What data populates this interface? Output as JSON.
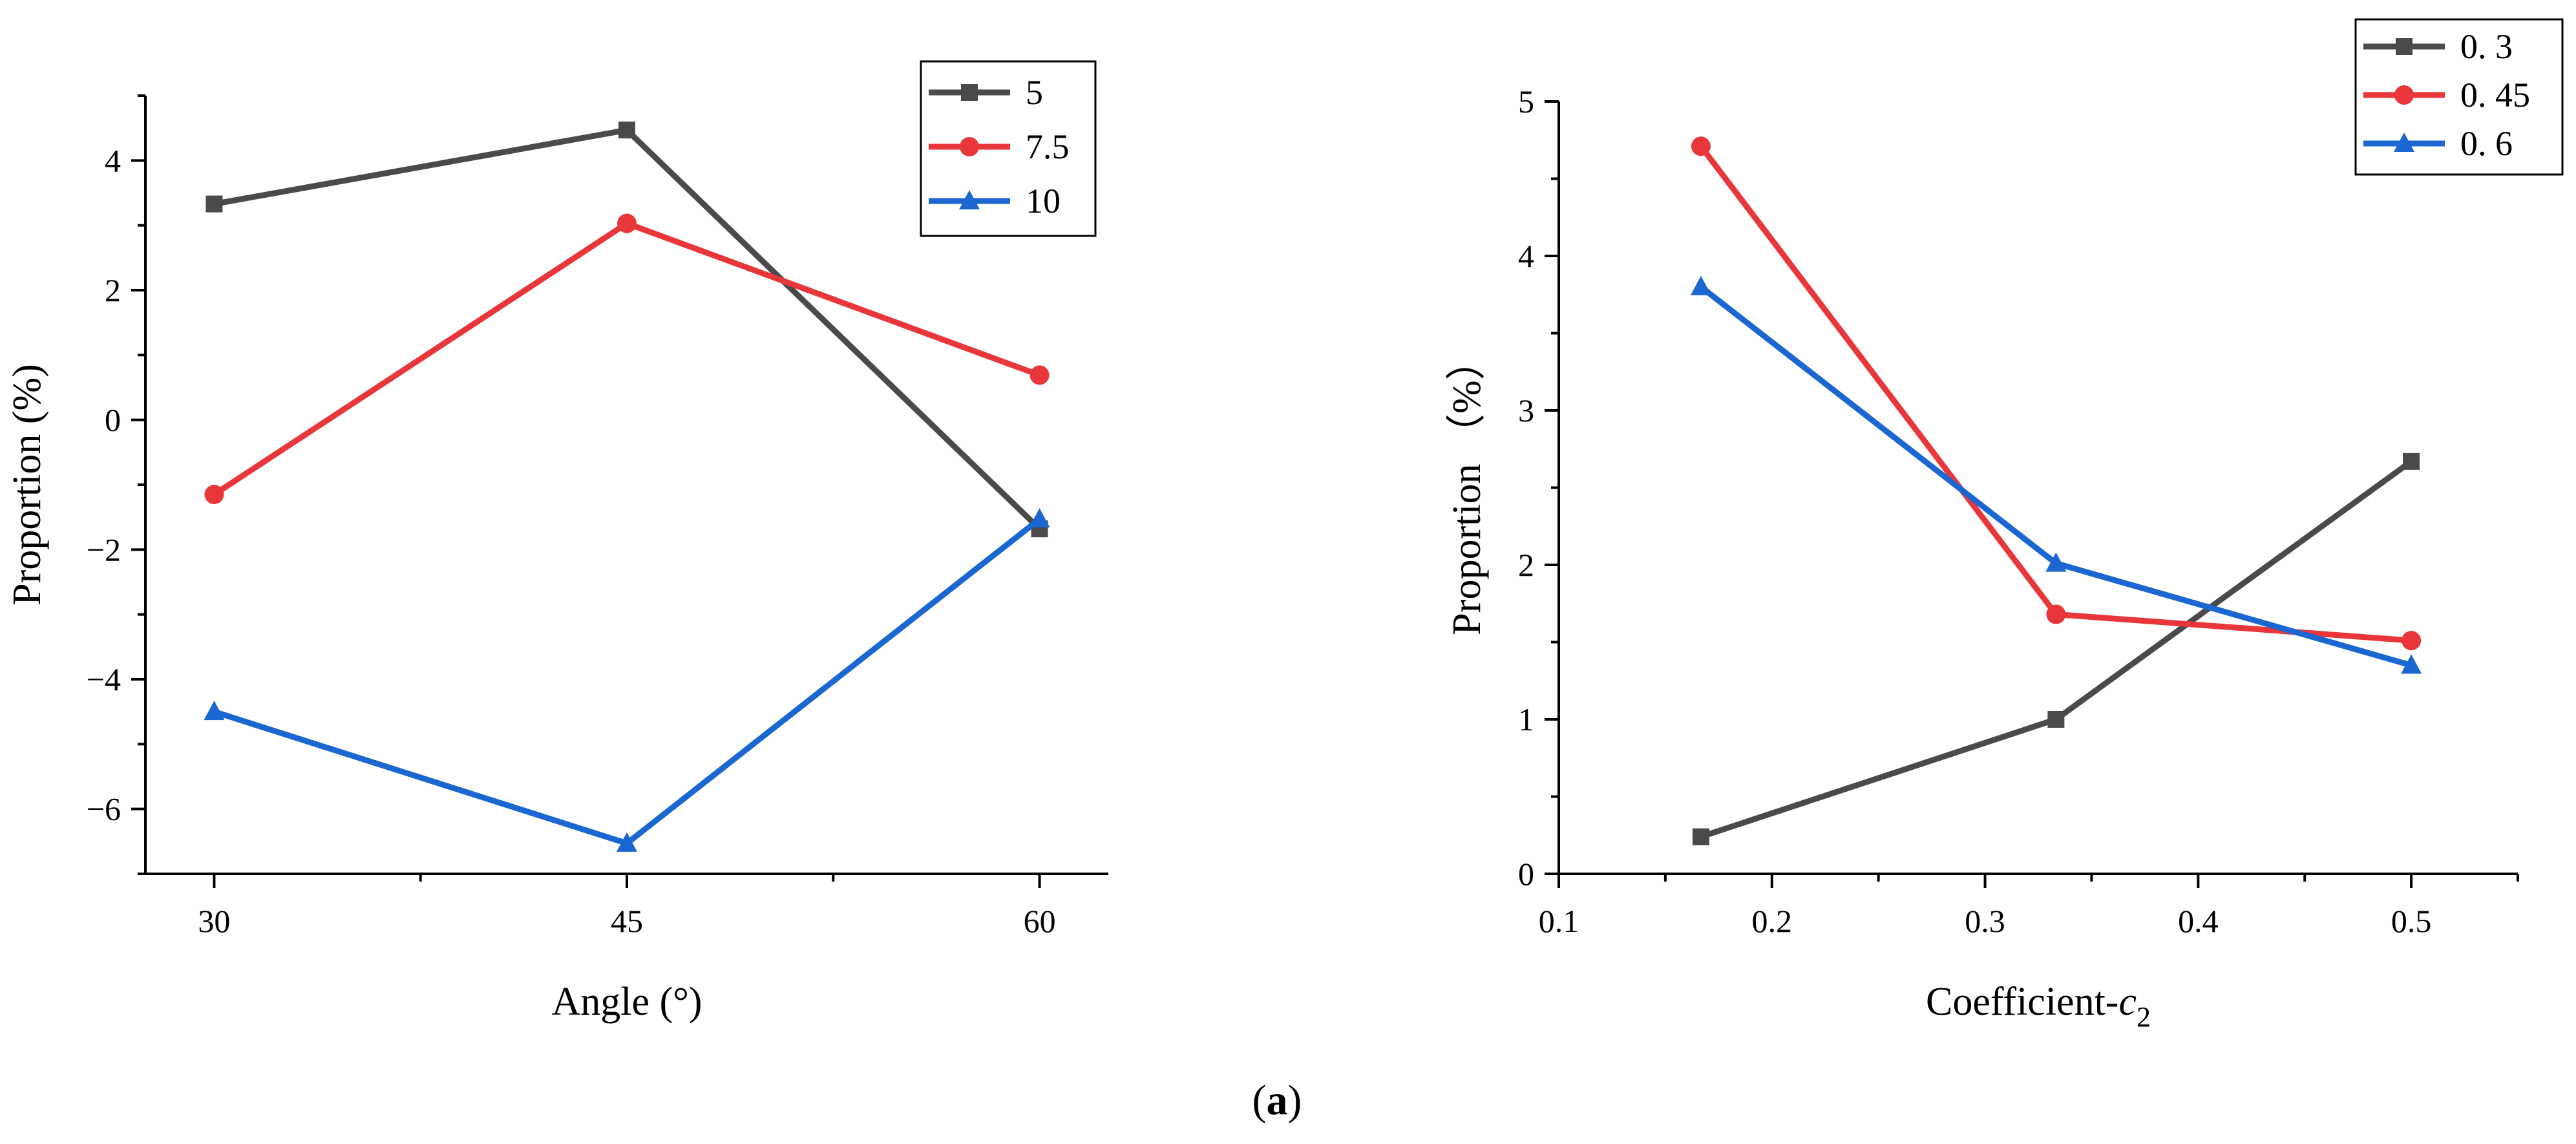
{
  "chart_data": [
    {
      "type": "line",
      "title": "",
      "xlabel": "Angle (°)",
      "ylabel": "Proportion (%)",
      "x": [
        30,
        45,
        60
      ],
      "xticks": [
        30,
        45,
        60
      ],
      "xtick_labels": [
        "30",
        "45",
        "60"
      ],
      "xlim": [
        27.5,
        62.5
      ],
      "yticks": [
        -6,
        -4,
        -2,
        0,
        2,
        4
      ],
      "ytick_labels": [
        "−6",
        "−4",
        "−2",
        "0",
        "2",
        "4"
      ],
      "ylim": [
        -7,
        5
      ],
      "legend_position": "top-right",
      "series": [
        {
          "name": "5",
          "color": "#4a4a4a",
          "marker": "square",
          "values": [
            3.33,
            4.47,
            -1.68
          ]
        },
        {
          "name": "7.5",
          "color": "#e8363b",
          "marker": "circle",
          "values": [
            -1.15,
            3.03,
            0.69
          ]
        },
        {
          "name": "10",
          "color": "#1a67d2",
          "marker": "triangle",
          "values": [
            -4.5,
            -6.53,
            -1.53
          ]
        }
      ]
    },
    {
      "type": "line",
      "title": "",
      "xlabel": "Coefficient-c",
      "xlabel_subscript": "2",
      "ylabel": "Proportion （%）",
      "x": [
        0.1667,
        0.3333,
        0.5
      ],
      "xticks": [
        0.1,
        0.2,
        0.3,
        0.4,
        0.5
      ],
      "xtick_labels": [
        "0.1",
        "0.2",
        "0.3",
        "0.4",
        "0.5"
      ],
      "xlim": [
        0.1,
        0.55
      ],
      "yticks": [
        0,
        1,
        2,
        3,
        4,
        5
      ],
      "ytick_labels": [
        "0",
        "1",
        "2",
        "3",
        "4",
        "5"
      ],
      "ylim": [
        0,
        5
      ],
      "legend_position": "top-right",
      "series": [
        {
          "name": "0. 3",
          "color": "#4a4a4a",
          "marker": "square",
          "values": [
            0.24,
            1.0,
            2.67
          ]
        },
        {
          "name": "0. 45",
          "color": "#e8363b",
          "marker": "circle",
          "values": [
            4.71,
            1.68,
            1.51
          ]
        },
        {
          "name": "0. 6",
          "color": "#1a67d2",
          "marker": "triangle",
          "values": [
            3.8,
            2.01,
            1.35
          ]
        }
      ]
    }
  ],
  "caption": {
    "open": "(",
    "label": "a",
    "close": ")"
  }
}
